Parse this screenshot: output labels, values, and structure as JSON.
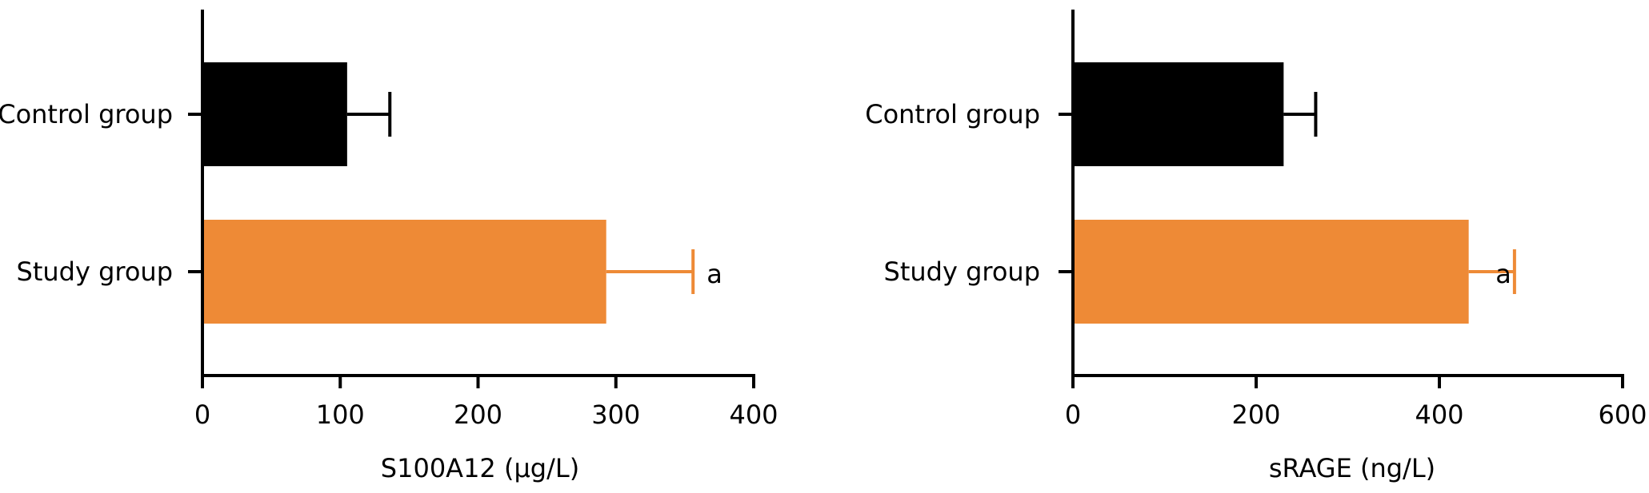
{
  "colors": {
    "control": "#000000",
    "study": "#EE8A36",
    "axis": "#000000"
  },
  "chart_data": [
    {
      "type": "bar",
      "orientation": "horizontal",
      "categories": [
        "Control group",
        "Study group"
      ],
      "values": [
        105,
        293
      ],
      "errors": [
        31,
        63
      ],
      "bar_colors": [
        "#000000",
        "#EE8A36"
      ],
      "annotations": [
        "",
        "a"
      ],
      "xlabel": "S100A12 (μg/L)",
      "ylabel": "",
      "xlim": [
        0,
        400
      ],
      "xticks": [
        0,
        100,
        200,
        300,
        400
      ],
      "xtick_labels": [
        "0",
        "100",
        "200",
        "300",
        "400"
      ],
      "grid": false
    },
    {
      "type": "bar",
      "orientation": "horizontal",
      "categories": [
        "Control group",
        "Study group"
      ],
      "values": [
        230,
        432
      ],
      "errors": [
        35,
        50
      ],
      "bar_colors": [
        "#000000",
        "#EE8A36"
      ],
      "annotations": [
        "",
        "a"
      ],
      "xlabel": "sRAGE (ng/L)",
      "ylabel": "",
      "xlim": [
        0,
        600
      ],
      "xticks": [
        0,
        200,
        400,
        600
      ],
      "xtick_labels": [
        "0",
        "200",
        "400",
        "600"
      ],
      "grid": false
    }
  ]
}
